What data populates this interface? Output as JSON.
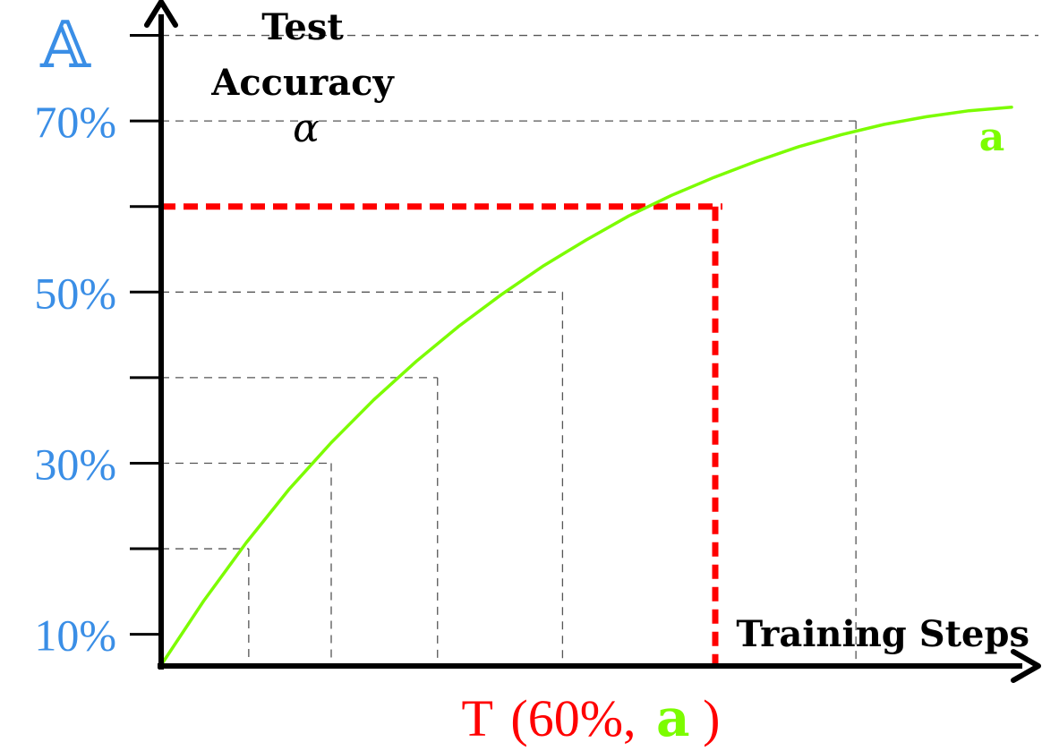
{
  "chart_data": {
    "type": "line",
    "corner_label": "𝔸",
    "y_axis_title_lines": [
      "Test",
      "Accuracy"
    ],
    "y_axis_symbol": "α",
    "x_axis_title": "Training Steps",
    "ylim": [
      6.3,
      81
    ],
    "xlim": [
      0,
      1
    ],
    "y_ticks": [
      10,
      20,
      30,
      40,
      50,
      60,
      70,
      80
    ],
    "y_tick_labels": [
      {
        "value": 10,
        "label": "10%"
      },
      {
        "value": 30,
        "label": "30%"
      },
      {
        "value": 50,
        "label": "50%"
      },
      {
        "value": 70,
        "label": "70%"
      }
    ],
    "series": [
      {
        "name": "a",
        "color": "#7cfc00",
        "x": [
          0,
          0.05,
          0.1,
          0.15,
          0.2,
          0.25,
          0.3,
          0.35,
          0.4,
          0.45,
          0.5,
          0.55,
          0.6,
          0.65,
          0.7,
          0.75,
          0.8,
          0.85,
          0.9,
          0.95,
          1.0
        ],
        "y": [
          6.4,
          13.9,
          20.7,
          26.9,
          32.4,
          37.4,
          41.9,
          46.0,
          49.7,
          53.1,
          56.1,
          58.9,
          61.3,
          63.4,
          65.3,
          67.0,
          68.4,
          69.6,
          70.5,
          71.2,
          71.6
        ]
      }
    ],
    "reference_points": [
      {
        "x": 0.103,
        "y": 20
      },
      {
        "x": 0.2,
        "y": 30
      },
      {
        "x": 0.325,
        "y": 40
      },
      {
        "x": 0.472,
        "y": 50
      },
      {
        "x": 0.817,
        "y": 70
      }
    ],
    "highlight": {
      "x": 0.66,
      "y": 60,
      "color": "#ff0000",
      "label_prefix": "T",
      "label_value": "(60%,",
      "label_series": "a",
      "label_suffix": ")"
    },
    "grid": false,
    "colors": {
      "tick_labels": "#3a8ee6",
      "axes": "#000000",
      "guides": "#555555"
    }
  }
}
